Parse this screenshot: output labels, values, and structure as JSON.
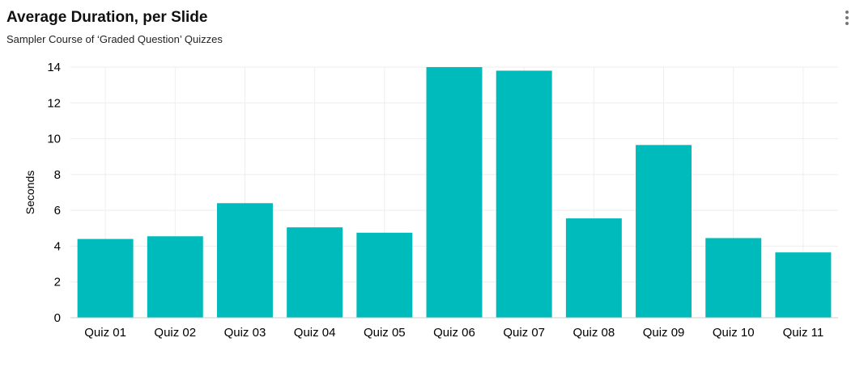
{
  "header": {
    "title": "Average Duration, per Slide",
    "subtitle": "Sampler Course of ‘Graded Question’ Quizzes",
    "menu_icon": "more-vertical-icon"
  },
  "chart_data": {
    "type": "bar",
    "title": "Average Duration, per Slide",
    "subtitle": "Sampler Course of ‘Graded Question’ Quizzes",
    "xlabel": "",
    "ylabel": "Seconds",
    "categories": [
      "Quiz 01",
      "Quiz 02",
      "Quiz 03",
      "Quiz 04",
      "Quiz 05",
      "Quiz 06",
      "Quiz 07",
      "Quiz 08",
      "Quiz 09",
      "Quiz 10",
      "Quiz 11"
    ],
    "values": [
      4.4,
      4.55,
      6.4,
      5.05,
      4.75,
      14.0,
      13.8,
      5.55,
      9.65,
      4.45,
      3.65
    ],
    "ylim": [
      0,
      14
    ],
    "yticks": [
      0,
      2,
      4,
      6,
      8,
      10,
      12,
      14
    ],
    "grid": true,
    "legend": "none",
    "bar_color": "#00BBBB",
    "grid_color": "#EEEEEE",
    "axis_color": "#CCCCCC"
  }
}
